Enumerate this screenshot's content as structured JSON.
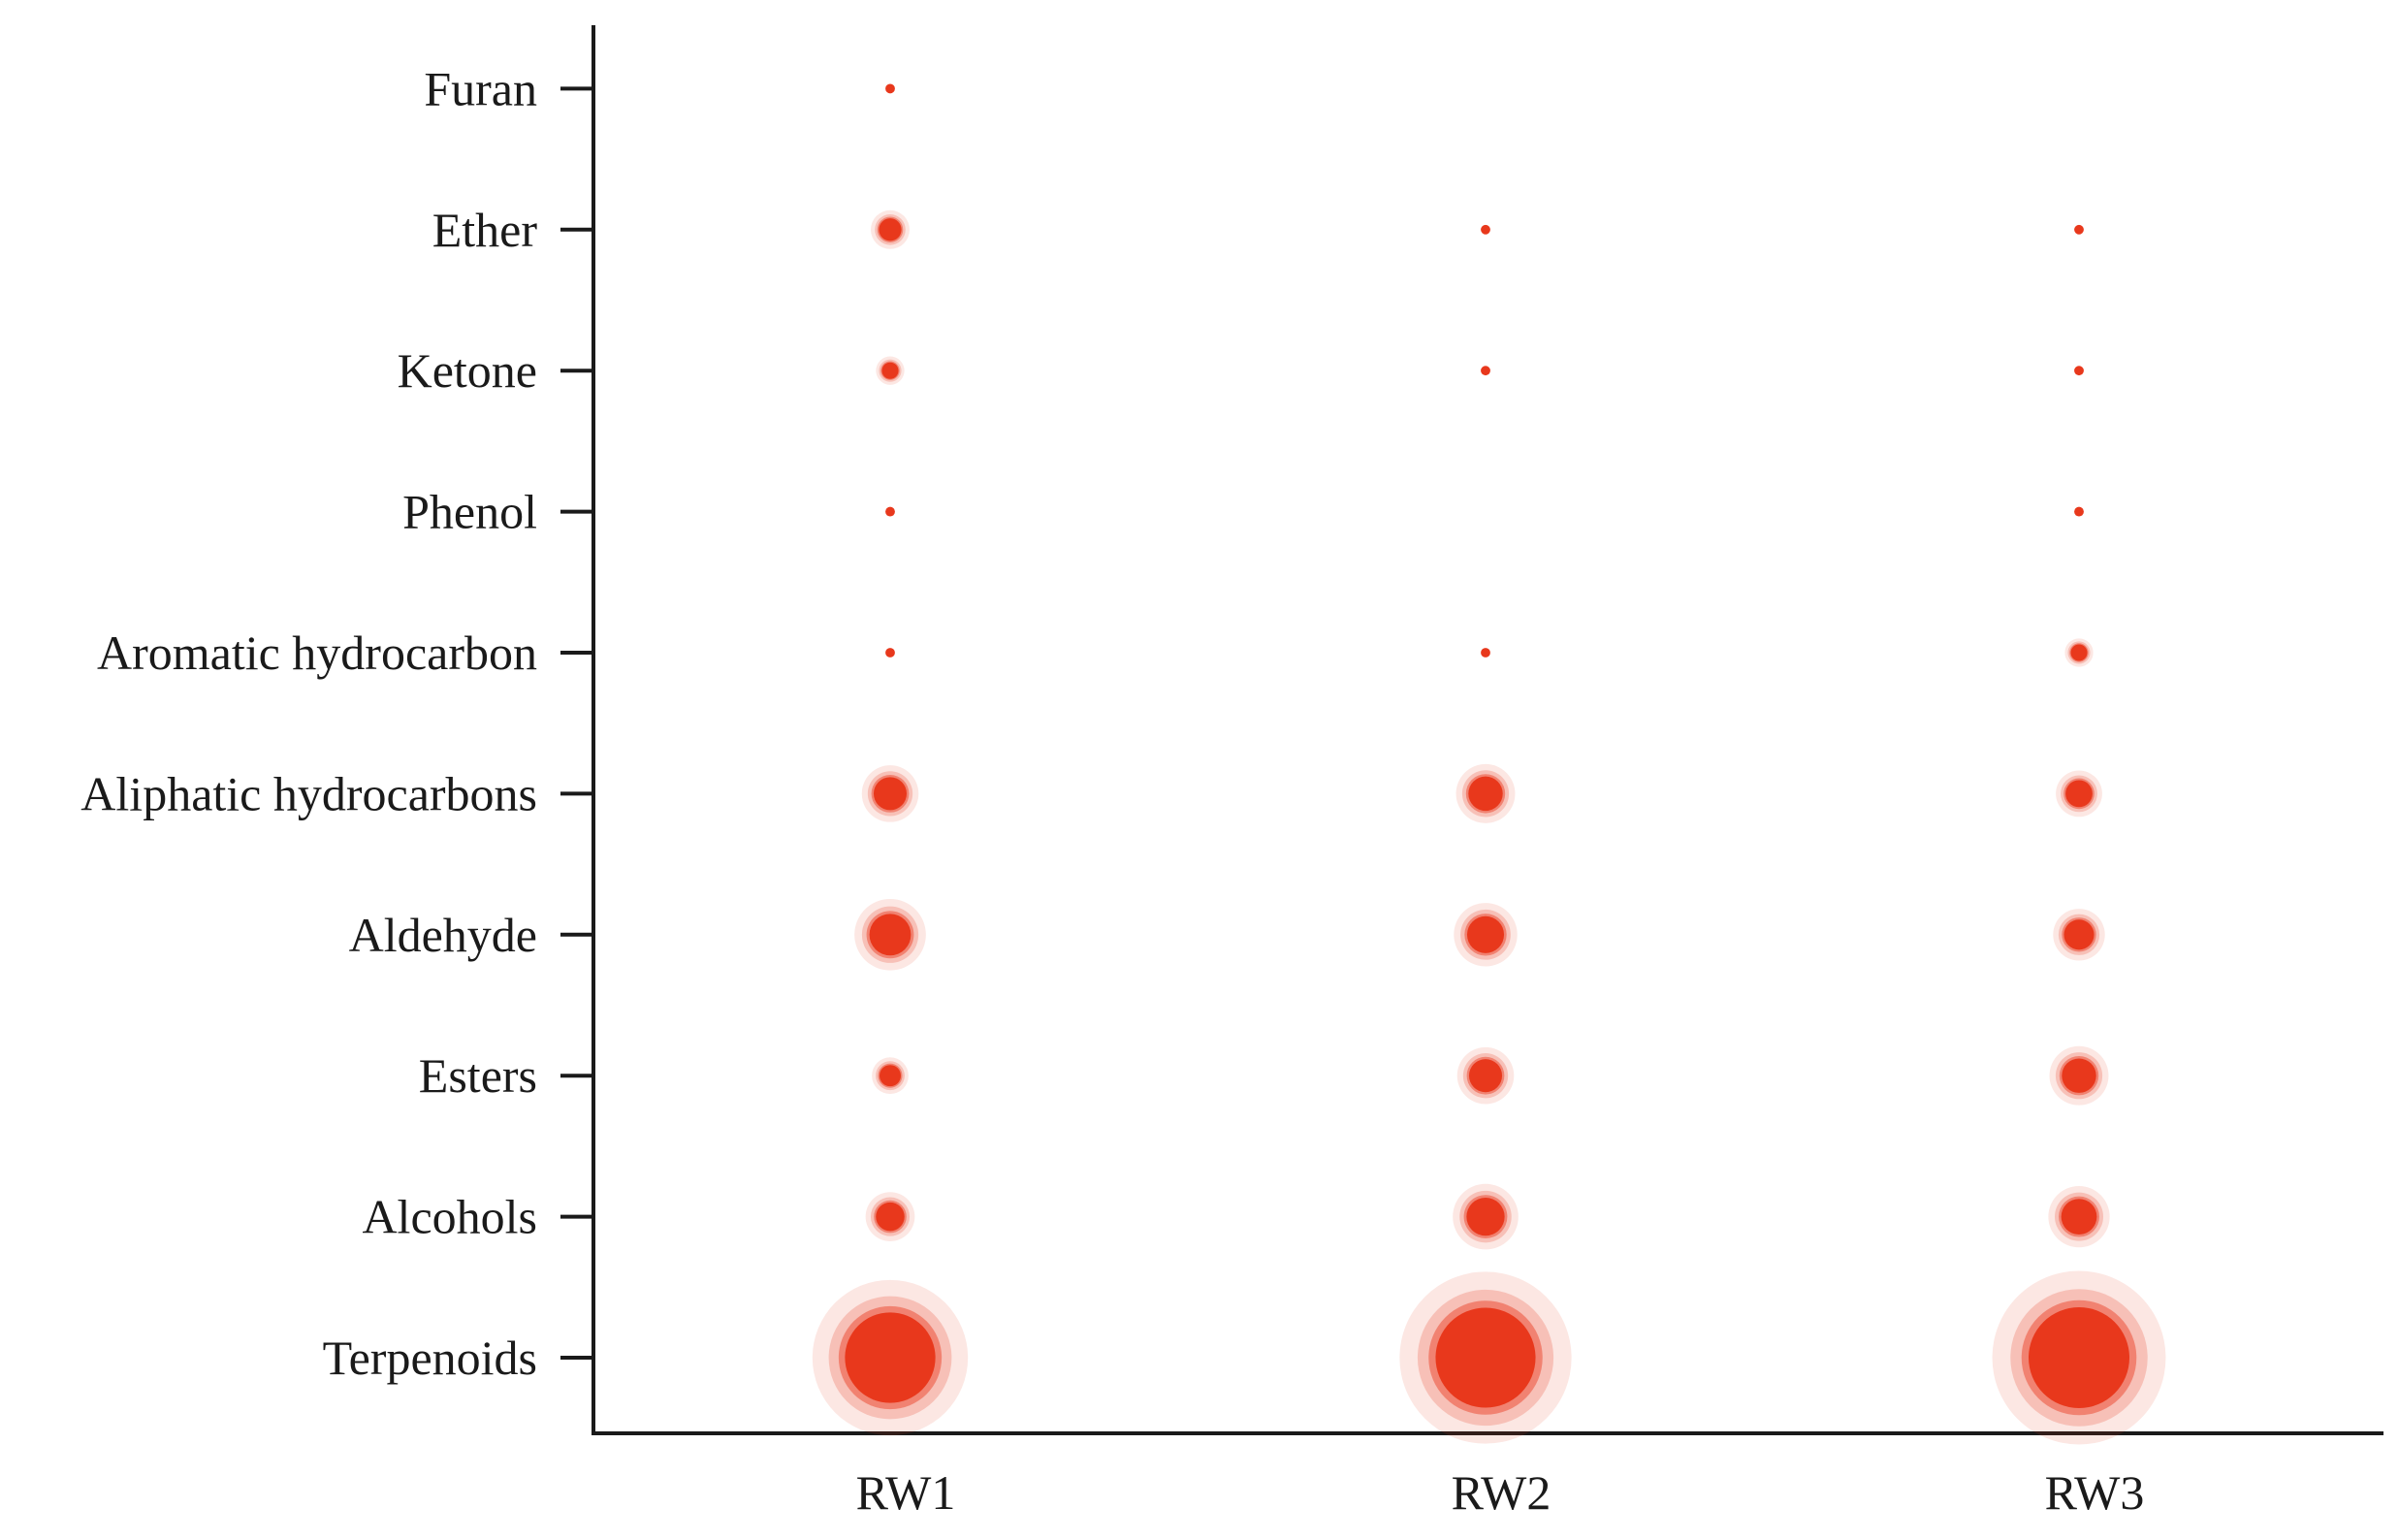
{
  "chart_data": {
    "type": "scatter",
    "title": "",
    "xlabel": "",
    "ylabel": "",
    "categories": [
      "RW1",
      "RW2",
      "RW3"
    ],
    "y_categories": [
      "Terpenoids",
      "Alcohols",
      "Esters",
      "Aldehyde",
      "Aliphatic hydrocarbons",
      "Aromatic hydrocarbon",
      "Phenol",
      "Ketone",
      "Ether",
      "Furan"
    ],
    "values": [
      [
        45.0,
        55.0,
        56.0
      ],
      [
        4.5,
        8.0,
        7.0
      ],
      [
        2.5,
        6.0,
        6.5
      ],
      [
        9.5,
        7.5,
        5.0
      ],
      [
        6.0,
        6.5,
        4.0
      ],
      [
        0.5,
        0.5,
        1.5
      ],
      [
        0.5,
        0.0,
        0.5
      ],
      [
        1.5,
        0.5,
        0.5
      ],
      [
        2.8,
        0.5,
        0.5
      ],
      [
        0.5,
        0.0,
        0.0
      ]
    ],
    "color": "#e8381c",
    "grid": false,
    "legend": false
  }
}
